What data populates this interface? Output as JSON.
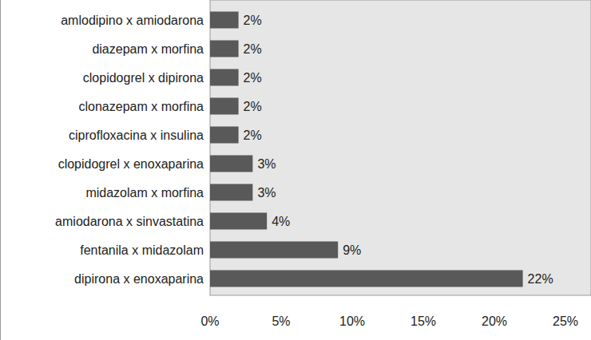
{
  "chart_data": {
    "type": "bar",
    "orientation": "horizontal",
    "categories": [
      "amlodipino x amiodarona",
      "diazepam x morfina",
      "clopidogrel x dipirona",
      "clonazepam x morfina",
      "ciprofloxacina x insulina ",
      "clopidogrel x enoxaparina",
      "midazolam x morfina",
      "amiodarona x sinvastatina",
      "fentanila  x midazolam",
      "dipirona x enoxaparina"
    ],
    "values": [
      2,
      2,
      2,
      2,
      2,
      3,
      3,
      4,
      9,
      22
    ],
    "value_labels": [
      "2%",
      "2%",
      "2%",
      "2%",
      "2%",
      "3%",
      "3%",
      "4%",
      "9%",
      "22%"
    ],
    "color": "#595959",
    "xlim": [
      0,
      25
    ],
    "xticks": [
      {
        "value": 0,
        "label": "0%"
      },
      {
        "value": 5,
        "label": "5%"
      },
      {
        "value": 10,
        "label": "10%"
      },
      {
        "value": 15,
        "label": "15%"
      },
      {
        "value": 20,
        "label": "20%"
      },
      {
        "value": 25,
        "label": "25%"
      }
    ],
    "grid": false,
    "data_labels": true
  }
}
